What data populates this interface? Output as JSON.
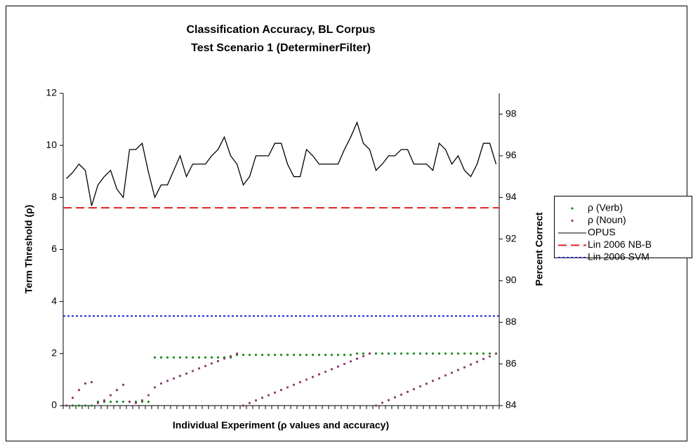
{
  "chart_data": {
    "type": "line",
    "title": "Classification Accuracy, BL Corpus",
    "subtitle": "Test Scenario 1 (DeterminerFilter)",
    "x_label": "Individual Experiment (ρ values and accuracy)",
    "y_label": "Term Threshold (ρ)",
    "y2_label": "Percent Correct",
    "categories": [
      null,
      null,
      null,
      null,
      null,
      null,
      null,
      null,
      null,
      null,
      null,
      null,
      null,
      null,
      null,
      null,
      null,
      null,
      null,
      null,
      null,
      null,
      null,
      null,
      null,
      null,
      null,
      null,
      null,
      null,
      null,
      null,
      null,
      null,
      null,
      null,
      null,
      null,
      null,
      null,
      null,
      null,
      null,
      null,
      null,
      null,
      null,
      null,
      null,
      null,
      null,
      null,
      null,
      null,
      null,
      null,
      null,
      null,
      null,
      null,
      null,
      null,
      null,
      null,
      null,
      null,
      null,
      null,
      null
    ],
    "ylim": [
      0,
      12
    ],
    "yticks": [
      0,
      2,
      4,
      6,
      8,
      10,
      12
    ],
    "y2lim": [
      84,
      99
    ],
    "y2ticks": [
      84,
      86,
      88,
      90,
      92,
      94,
      96,
      98
    ],
    "series": [
      {
        "name": "ρ (Verb)",
        "color": "#1a8a1a",
        "style": "dots",
        "values": [
          0,
          0,
          0,
          0,
          0,
          0.15,
          0.15,
          0.15,
          0.15,
          0.15,
          0.15,
          0.15,
          0.15,
          0.15,
          1.85,
          1.85,
          1.85,
          1.85,
          1.85,
          1.85,
          1.85,
          1.85,
          1.85,
          1.85,
          1.85,
          1.85,
          1.85,
          1.95,
          1.95,
          1.95,
          1.95,
          1.95,
          1.95,
          1.95,
          1.95,
          1.95,
          1.95,
          1.95,
          1.95,
          1.95,
          1.95,
          1.95,
          1.95,
          1.95,
          1.95,
          1.95,
          2,
          2,
          2,
          2,
          2,
          2,
          2,
          2,
          2,
          2,
          2,
          2,
          2,
          2,
          2,
          2,
          2,
          2,
          2,
          2,
          2,
          2,
          2
        ]
      },
      {
        "name": "ρ (Noun)",
        "color": "#8b3a6b",
        "style": "dots",
        "values": [
          0,
          0.3,
          0.6,
          0.85,
          0.9,
          0.1,
          0.2,
          0.4,
          0.6,
          0.8,
          0.15,
          0.1,
          0.2,
          0.4,
          0.7,
          0.85,
          0.95,
          1.04,
          1.14,
          1.23,
          1.33,
          1.43,
          1.52,
          1.62,
          1.71,
          1.81,
          1.9,
          2,
          0,
          0.1,
          0.2,
          0.3,
          0.4,
          0.5,
          0.6,
          0.7,
          0.8,
          0.9,
          1,
          1.1,
          1.2,
          1.3,
          1.4,
          1.5,
          1.6,
          1.7,
          1.8,
          1.9,
          2,
          0,
          0.11,
          0.21,
          0.32,
          0.42,
          0.53,
          0.63,
          0.74,
          0.84,
          0.95,
          1.05,
          1.16,
          1.26,
          1.37,
          1.47,
          1.58,
          1.68,
          1.79,
          1.89,
          2
        ]
      },
      {
        "name": "OPUS",
        "color": "#000000",
        "style": "solid",
        "axis": "y2",
        "values": [
          94.9,
          95.2,
          95.6,
          95.3,
          93.6,
          94.6,
          95,
          95.3,
          94.4,
          94,
          96.3,
          96.3,
          96.6,
          95.2,
          94,
          94.6,
          94.6,
          95.3,
          96,
          95,
          95.6,
          95.6,
          95.6,
          96,
          96.3,
          96.9,
          96,
          95.6,
          94.6,
          95,
          96,
          96,
          96,
          96.6,
          96.6,
          95.6,
          95,
          95,
          96.3,
          96,
          95.6,
          95.6,
          95.6,
          95.6,
          96.3,
          96.9,
          97.6,
          96.6,
          96.3,
          95.3,
          95.6,
          96,
          96,
          96.3,
          96.3,
          95.6,
          95.6,
          95.6,
          95.3,
          96.6,
          96.3,
          95.6,
          96,
          95.3,
          95,
          95.6,
          96.6,
          96.6,
          95.6
        ]
      },
      {
        "name": "Lin 2006 NB-B",
        "color": "#e02020",
        "style": "dashed",
        "axis": "y2",
        "value": 93.5
      },
      {
        "name": "Lin 2006 SVM",
        "color": "#2020d0",
        "style": "dotted",
        "axis": "y2",
        "value": 88.3
      }
    ]
  }
}
